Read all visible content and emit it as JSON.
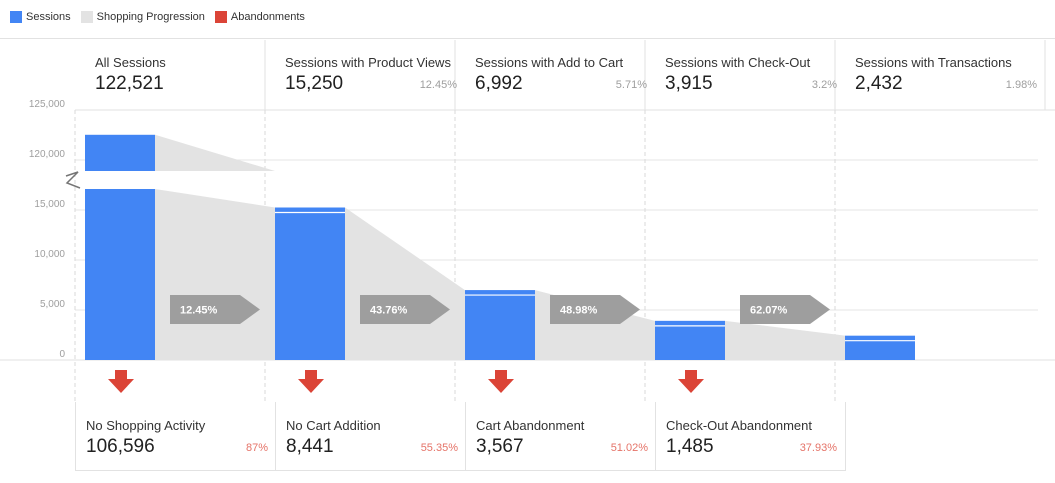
{
  "legend": [
    {
      "label": "Sessions",
      "color": "#4285f4"
    },
    {
      "label": "Shopping Progression",
      "color": "#e3e3e3"
    },
    {
      "label": "Abandonments",
      "color": "#db4437"
    }
  ],
  "stages": [
    {
      "title": "All Sessions",
      "count": "122,521",
      "pct": ""
    },
    {
      "title": "Sessions with Product Views",
      "count": "15,250",
      "pct": "12.45%"
    },
    {
      "title": "Sessions with Add to Cart",
      "count": "6,992",
      "pct": "5.71%"
    },
    {
      "title": "Sessions with Check-Out",
      "count": "3,915",
      "pct": "3.2%"
    },
    {
      "title": "Sessions with Transactions",
      "count": "2,432",
      "pct": "1.98%"
    }
  ],
  "abandonments": [
    {
      "title": "No Shopping Activity",
      "count": "106,596",
      "pct": "87%"
    },
    {
      "title": "No Cart Addition",
      "count": "8,441",
      "pct": "55.35%"
    },
    {
      "title": "Cart Abandonment",
      "count": "3,567",
      "pct": "51.02%"
    },
    {
      "title": "Check-Out Abandonment",
      "count": "1,485",
      "pct": "37.93%"
    }
  ],
  "chart_data": {
    "type": "bar",
    "categories": [
      "All Sessions",
      "Sessions with Product Views",
      "Sessions with Add to Cart",
      "Sessions with Check-Out",
      "Sessions with Transactions"
    ],
    "values": [
      122521,
      15250,
      6992,
      3915,
      2432
    ],
    "y_ticks": [
      "0",
      "5,000",
      "10,000",
      "15,000",
      "120,000",
      "125,000"
    ],
    "y_break": [
      16500,
      119000
    ],
    "ylim": [
      0,
      125000
    ],
    "progression_labels": [
      "12.45%",
      "43.76%",
      "48.98%",
      "62.07%"
    ],
    "grid": true,
    "legend_position": "top-left",
    "colors": {
      "sessions": "#4285f4",
      "progression": "#e3e3e3",
      "abandonment": "#db4437",
      "arrow_label": "#9e9e9e"
    }
  }
}
